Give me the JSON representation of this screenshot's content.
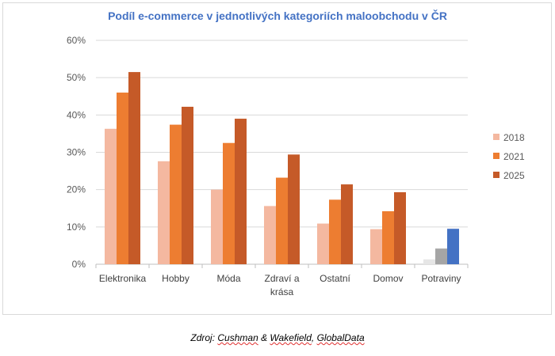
{
  "chart_data": {
    "type": "bar",
    "title": "Podíl e-commerce v jednotlivých kategoriích maloobchodu v ČR",
    "categories": [
      "Elektronika",
      "Hobby",
      "Móda",
      "Zdraví a krása",
      "Ostatní",
      "Domov",
      "Potraviny"
    ],
    "category_lines": [
      [
        "Elektronika"
      ],
      [
        "Hobby"
      ],
      [
        "Móda"
      ],
      [
        "Zdraví a",
        "krása"
      ],
      [
        "Ostatní"
      ],
      [
        "Domov"
      ],
      [
        "Potraviny"
      ]
    ],
    "series": [
      {
        "name": "2018",
        "color": "#f4b8a0",
        "values": [
          36.3,
          27.6,
          20.0,
          15.6,
          10.9,
          9.4,
          1.3
        ]
      },
      {
        "name": "2021",
        "color": "#ed7d31",
        "values": [
          46.0,
          37.4,
          32.5,
          23.2,
          17.3,
          14.2,
          4.2
        ]
      },
      {
        "name": "2025",
        "color": "#c55a28",
        "values": [
          51.5,
          42.2,
          39.0,
          29.4,
          21.4,
          19.3,
          9.5
        ]
      }
    ],
    "highlight_category": "Potraviny",
    "highlight_colors": [
      "#e6e6e6",
      "#a5a5a5",
      "#4472c4"
    ],
    "ylim": [
      0,
      60
    ],
    "yticks": [
      "0%",
      "10%",
      "20%",
      "30%",
      "40%",
      "50%",
      "60%"
    ],
    "grid": true,
    "legend": "right"
  },
  "source": {
    "prefix": "Zdroj: ",
    "parts": [
      "Cushman",
      " & ",
      "Wakefield",
      ", ",
      "GlobalData"
    ]
  }
}
